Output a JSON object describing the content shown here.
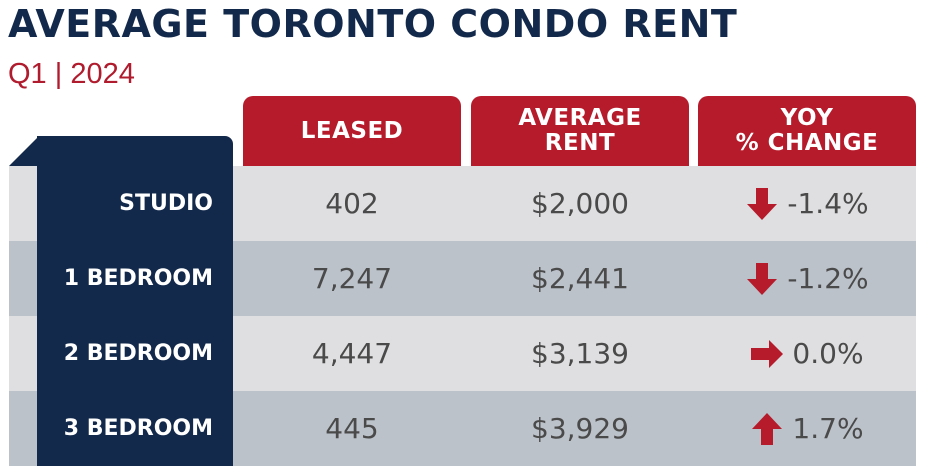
{
  "header": {
    "title": "AVERAGE TORONTO CONDO RENT",
    "subtitle": "Q1 | 2024"
  },
  "columns": {
    "leased": "LEASED",
    "rent_line1": "AVERAGE",
    "rent_line2": "RENT",
    "yoy_line1": "YOY",
    "yoy_line2": "% CHANGE"
  },
  "rows": [
    {
      "label": "STUDIO",
      "leased": "402",
      "rent": "$2,000",
      "yoy": "-1.4%",
      "trend_icon": "arrow-down-icon"
    },
    {
      "label": "1 BEDROOM",
      "leased": "7,247",
      "rent": "$2,441",
      "yoy": "-1.2%",
      "trend_icon": "arrow-down-icon"
    },
    {
      "label": "2 BEDROOM",
      "leased": "4,447",
      "rent": "$3,139",
      "yoy": "0.0%",
      "trend_icon": "arrow-right-icon"
    },
    {
      "label": "3 BEDROOM",
      "leased": "445",
      "rent": "$3,929",
      "yoy": "1.7%",
      "trend_icon": "arrow-up-icon"
    }
  ],
  "colors": {
    "navy": "#13294b",
    "red": "#b51b2b",
    "row_light": "#dfdfe1",
    "row_dark": "#bcc2ca",
    "text": "#4a4a4a"
  }
}
